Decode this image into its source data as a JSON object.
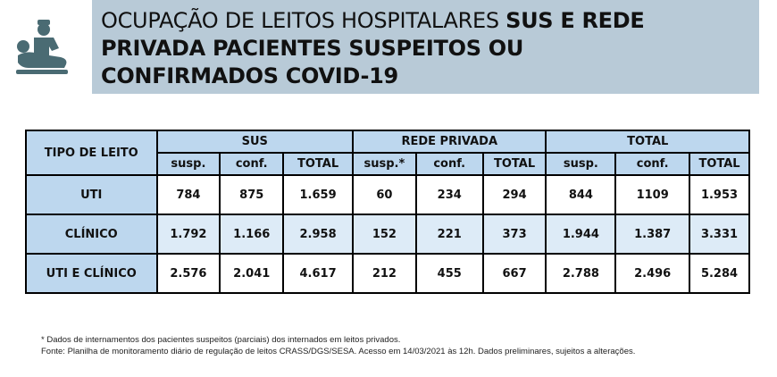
{
  "title": {
    "line1_regular": "OCUPAÇÃO DE LEITOS HOSPITALARES ",
    "line1_bold": "SUS E REDE",
    "line2": "PRIVADA PACIENTES SUSPEITOS OU",
    "line3": "CONFIRMADOS COVID-19"
  },
  "icon": "hospital-bed-doctor-icon",
  "colors": {
    "banner": "#b8cad7",
    "header": "#bdd7ee",
    "alt_row": "#ddebf7",
    "icon": "#4a6b73"
  },
  "table": {
    "row_header": "TIPO DE LEITO",
    "groups": [
      "SUS",
      "REDE PRIVADA",
      "TOTAL"
    ],
    "subheaders": [
      "susp.",
      "conf.",
      "TOTAL",
      "susp.*",
      "conf.",
      "TOTAL",
      "susp.",
      "conf.",
      "TOTAL"
    ],
    "rows": [
      {
        "label": "UTI",
        "values": [
          "784",
          "875",
          "1.659",
          "60",
          "234",
          "294",
          "844",
          "1109",
          "1.953"
        ]
      },
      {
        "label": "CLÍNICO",
        "values": [
          "1.792",
          "1.166",
          "2.958",
          "152",
          "221",
          "373",
          "1.944",
          "1.387",
          "3.331"
        ]
      },
      {
        "label": "UTI E CLÍNICO",
        "values": [
          "2.576",
          "2.041",
          "4.617",
          "212",
          "455",
          "667",
          "2.788",
          "2.496",
          "5.284"
        ]
      }
    ]
  },
  "notes": [
    "* Dados de internamentos dos pacientes suspeitos (parciais) dos internados em leitos privados.",
    "Fonte: Planilha de monitoramento diário de regulação de leitos CRASS/DGS/SESA. Acesso em 14/03/2021 às 12h. Dados preliminares, sujeitos a alterações."
  ]
}
